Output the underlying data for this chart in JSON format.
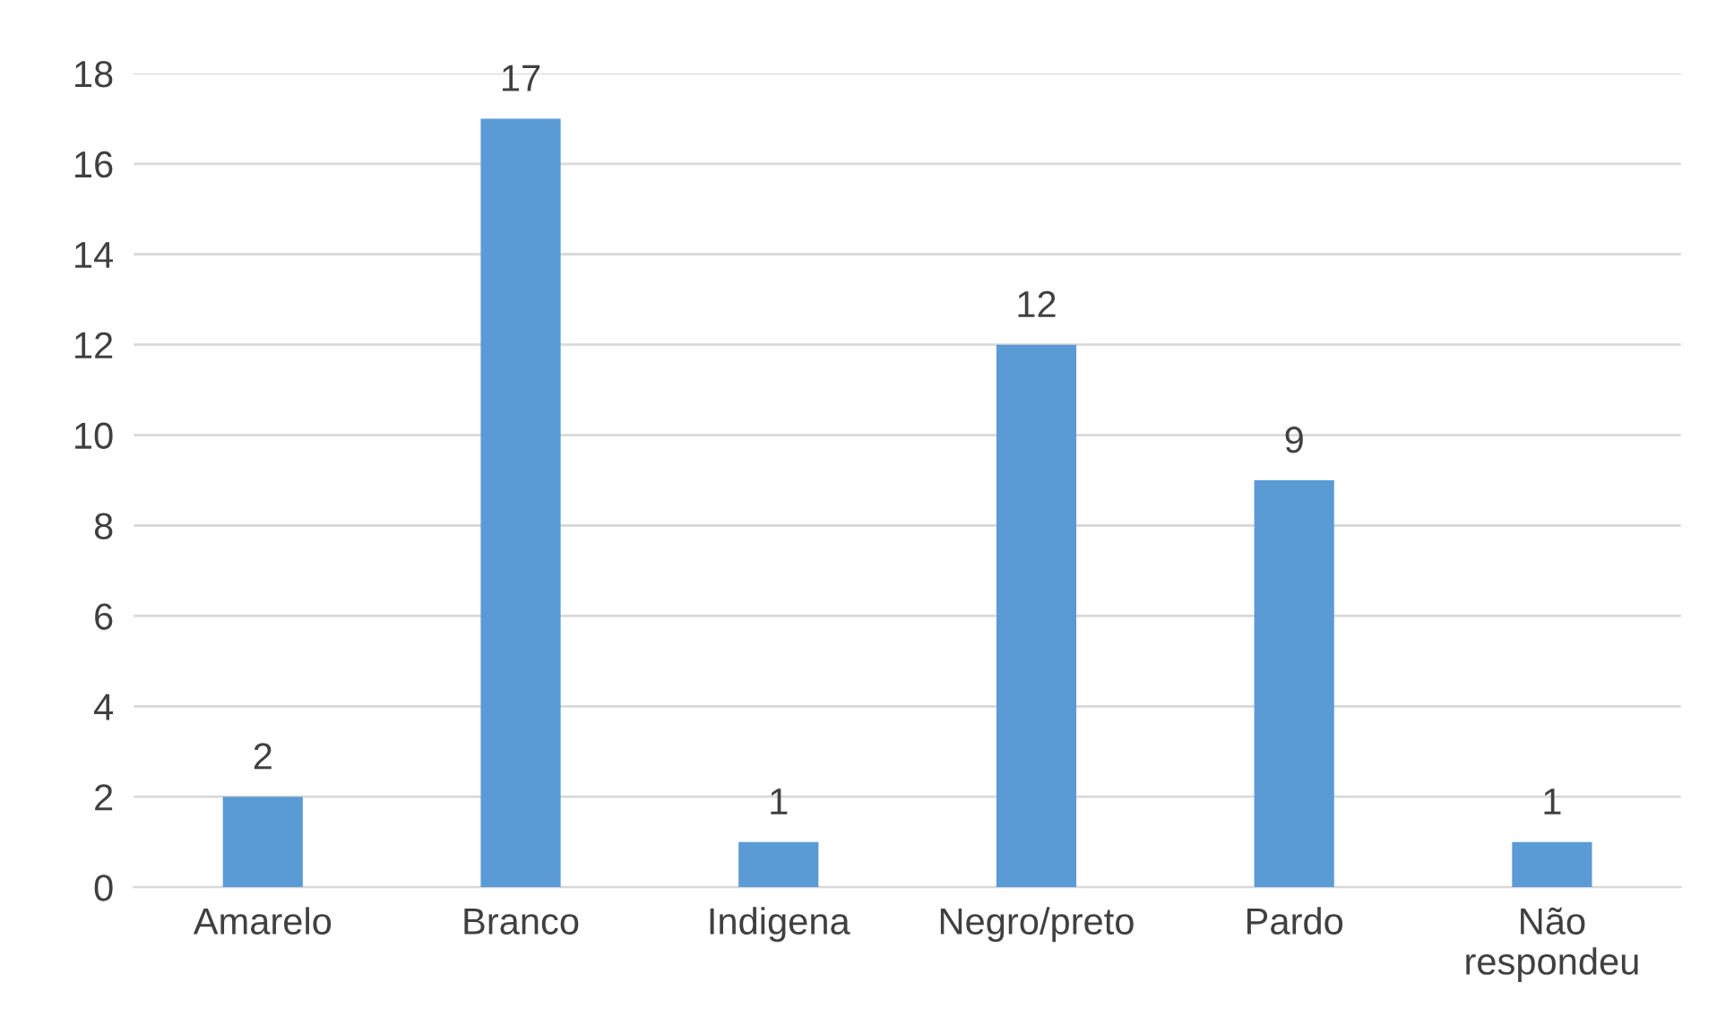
{
  "chart_data": {
    "type": "bar",
    "categories": [
      "Amarelo",
      "Branco",
      "Indigena",
      "Negro/preto",
      "Pardo",
      "Não\nrespondeu"
    ],
    "values": [
      2,
      17,
      1,
      12,
      9,
      1
    ],
    "color": "#5b9bd5",
    "ylim": [
      0,
      18
    ],
    "yticks": [
      0,
      2,
      4,
      6,
      8,
      10,
      12,
      14,
      16,
      18
    ],
    "grid": "y",
    "data_labels": true,
    "legend": false
  }
}
